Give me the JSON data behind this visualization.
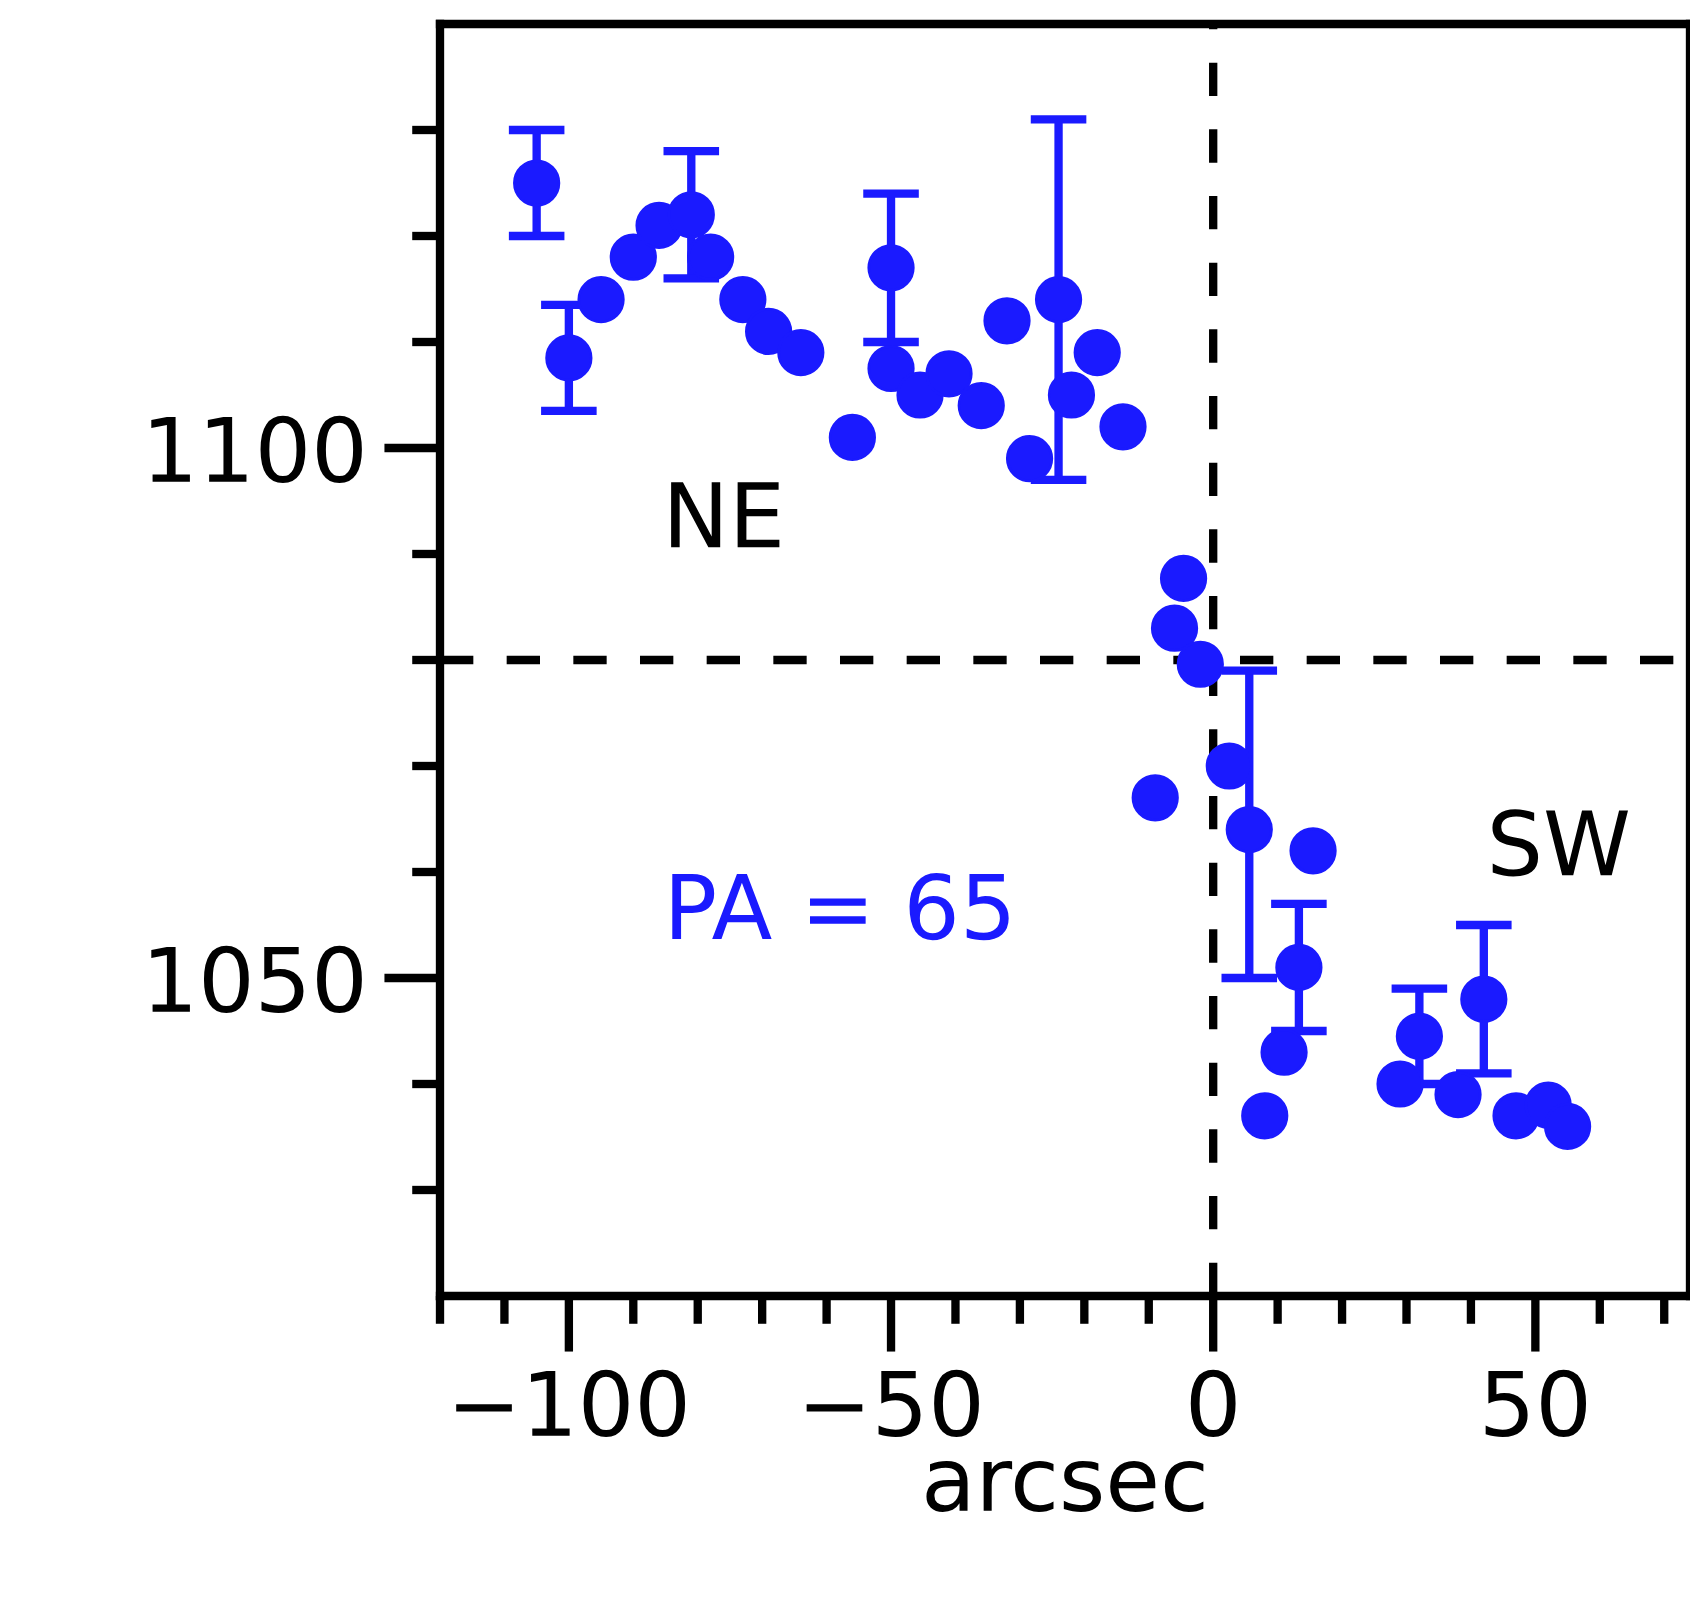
{
  "chart_data": {
    "type": "scatter",
    "xlabel": "arcsec",
    "x": [
      -105,
      -100,
      -95,
      -90,
      -86,
      -81,
      -78,
      -73,
      -69,
      -64,
      -56,
      -50,
      -50,
      -45.5,
      -41,
      -36,
      -32,
      -28.5,
      -24,
      -22,
      -18,
      -14,
      -4.6,
      -6,
      -2,
      -9,
      2.5,
      5.6,
      15.5,
      13.3,
      11,
      8,
      29,
      32,
      38,
      42,
      47,
      52,
      55
    ],
    "series": [
      {
        "color": "#1a1aff",
        "values": [
          1125,
          1108.5,
          1114,
          1118,
          1121,
          1122,
          1118,
          1114,
          1111,
          1109,
          1101,
          1117,
          1107.5,
          1105,
          1107,
          1104,
          1112,
          1099,
          1114,
          1105,
          1109,
          1102,
          1087.7,
          1083,
          1079.6,
          1067,
          1070,
          1064,
          1062,
          1051,
          1043,
          1037,
          1040,
          1044.5,
          1039,
          1048,
          1037,
          1038,
          1036
        ],
        "errors": [
          5,
          5,
          null,
          null,
          null,
          6,
          null,
          null,
          null,
          null,
          null,
          7,
          null,
          null,
          null,
          null,
          null,
          null,
          17,
          null,
          null,
          null,
          null,
          null,
          null,
          null,
          null,
          [
            1050,
            1079
          ],
          null,
          6,
          null,
          null,
          null,
          4.5,
          null,
          7,
          null,
          null,
          null
        ]
      }
    ],
    "xlim": [
      -120,
      74
    ],
    "ylim": [
      1020,
      1140
    ],
    "xticks": [
      {
        "value": -120,
        "label": null
      },
      {
        "value": -110,
        "label": null
      },
      {
        "value": -100,
        "label": "−100"
      },
      {
        "value": -90,
        "label": null
      },
      {
        "value": -80,
        "label": null
      },
      {
        "value": -70,
        "label": null
      },
      {
        "value": -60,
        "label": null
      },
      {
        "value": -50,
        "label": "−50"
      },
      {
        "value": -40,
        "label": null
      },
      {
        "value": -30,
        "label": null
      },
      {
        "value": -20,
        "label": null
      },
      {
        "value": -10,
        "label": null
      },
      0,
      {
        "value": 10,
        "label": null
      },
      {
        "value": 20,
        "label": null
      },
      {
        "value": 30,
        "label": null
      },
      {
        "value": 40,
        "label": null
      },
      50,
      {
        "value": 60,
        "label": null
      },
      {
        "value": 70,
        "label": null
      }
    ],
    "yticks": [
      {
        "value": 1030,
        "label": null
      },
      {
        "value": 1040,
        "label": null
      },
      1050,
      {
        "value": 1060,
        "label": null
      },
      {
        "value": 1070,
        "label": null
      },
      {
        "value": 1080,
        "label": null
      },
      {
        "value": 1090,
        "label": null
      },
      1100,
      {
        "value": 1110,
        "label": null
      },
      {
        "value": 1120,
        "label": null
      },
      {
        "value": 1130,
        "label": null
      }
    ],
    "ref_lines": [
      {
        "axis": "x",
        "value": 0,
        "label": null,
        "color": "#000000",
        "line_style": "dashed"
      },
      {
        "axis": "y",
        "value": 1080,
        "label": null,
        "color": "#000000",
        "line_style": "dashed"
      }
    ],
    "annotations": [
      "NE",
      "SW",
      "PA = 65"
    ],
    "marker": "circle",
    "grid": false,
    "legend": false
  }
}
